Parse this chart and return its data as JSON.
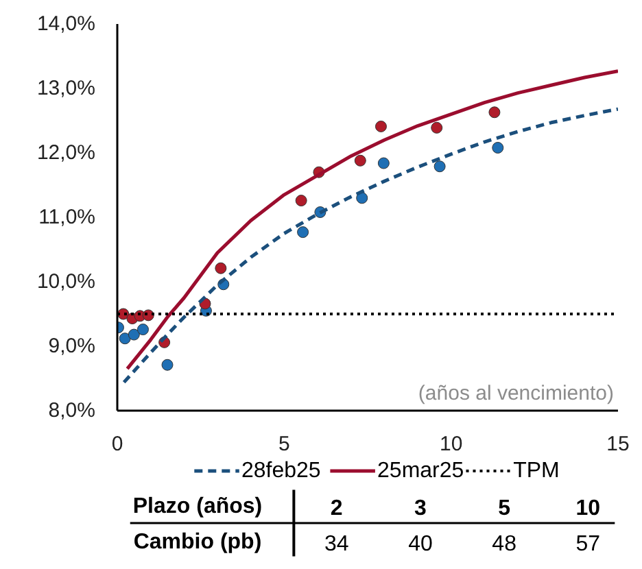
{
  "chart_data": [
    {
      "type": "scatter",
      "xlim": [
        0,
        15
      ],
      "ylim": [
        8,
        14
      ],
      "xticks": [
        0,
        5,
        10,
        15
      ],
      "yticks": [
        {
          "value": 8,
          "label": "8,0%"
        },
        {
          "value": 9,
          "label": "9,0%"
        },
        {
          "value": 10,
          "label": "10,0%"
        },
        {
          "value": 11,
          "label": "11,0%"
        },
        {
          "value": 12,
          "label": "12,0%"
        },
        {
          "value": 13,
          "label": "13,0%"
        },
        {
          "value": 14,
          "label": "14,0%"
        }
      ],
      "grid": false,
      "legend": "bottom",
      "marker": "circle",
      "annotations": [
        "(años al vencimiento)"
      ],
      "series": [
        {
          "type": "scatter",
          "color": "#1f6fb4",
          "x": [
            0.03,
            0.23,
            0.5,
            0.77,
            1.5,
            2.66,
            3.18,
            5.56,
            6.08,
            7.33,
            7.98,
            9.66,
            11.4
          ],
          "values": [
            9.29,
            9.12,
            9.18,
            9.26,
            8.71,
            9.55,
            9.96,
            10.77,
            11.08,
            11.3,
            11.84,
            11.79,
            12.08
          ]
        },
        {
          "type": "scatter",
          "color": "#b01c2a",
          "x": [
            0.18,
            0.45,
            0.68,
            0.93,
            1.41,
            2.63,
            3.1,
            5.51,
            6.04,
            7.28,
            7.9,
            9.57,
            11.3
          ],
          "values": [
            9.5,
            9.43,
            9.47,
            9.48,
            9.06,
            9.66,
            10.21,
            11.26,
            11.7,
            11.88,
            12.41,
            12.39,
            12.63
          ]
        },
        {
          "type": "line",
          "name": "28feb25",
          "color": "#1b4f7c",
          "line_style": "dashed",
          "marker": "none",
          "x": [
            0.2,
            1,
            1.5,
            2,
            3,
            4,
            5,
            6,
            7,
            8,
            9,
            10,
            11,
            12,
            13,
            14,
            15
          ],
          "values": [
            8.44,
            8.9,
            9.18,
            9.45,
            9.95,
            10.38,
            10.75,
            11.05,
            11.32,
            11.56,
            11.78,
            11.98,
            12.17,
            12.33,
            12.47,
            12.58,
            12.68
          ]
        },
        {
          "type": "line",
          "name": "25mar25",
          "color": "#9b0d2e",
          "line_style": "solid",
          "marker": "none",
          "x": [
            0.3,
            1,
            1.5,
            2,
            3,
            4,
            5,
            6,
            7,
            8,
            9,
            10,
            11,
            12,
            13,
            14,
            15
          ],
          "values": [
            8.65,
            9.1,
            9.45,
            9.75,
            10.45,
            10.95,
            11.35,
            11.65,
            11.95,
            12.2,
            12.42,
            12.6,
            12.78,
            12.93,
            13.05,
            13.17,
            13.27
          ]
        }
      ],
      "ref_lines": [
        {
          "axis": "y",
          "value": 9.5,
          "label": "TPM",
          "color": "#000000",
          "line_style": "dotted"
        }
      ]
    },
    {
      "type": "other",
      "xlabel": "Plazo (años)",
      "ylabel": "Cambio (pb)",
      "categories": [
        "2",
        "3",
        "5",
        "10"
      ],
      "values": [
        34,
        40,
        48,
        57
      ],
      "data_labels": true
    }
  ]
}
